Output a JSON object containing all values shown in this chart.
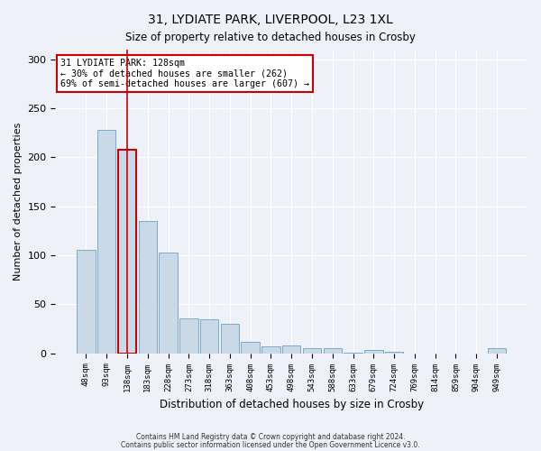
{
  "title1": "31, LYDIATE PARK, LIVERPOOL, L23 1XL",
  "title2": "Size of property relative to detached houses in Crosby",
  "xlabel": "Distribution of detached houses by size in Crosby",
  "ylabel": "Number of detached properties",
  "annotation_line1": "31 LYDIATE PARK: 128sqm",
  "annotation_line2": "← 30% of detached houses are smaller (262)",
  "annotation_line3": "69% of semi-detached houses are larger (607) →",
  "footer1": "Contains HM Land Registry data © Crown copyright and database right 2024.",
  "footer2": "Contains public sector information licensed under the Open Government Licence v3.0.",
  "bar_labels": [
    "48sqm",
    "93sqm",
    "138sqm",
    "183sqm",
    "228sqm",
    "273sqm",
    "318sqm",
    "363sqm",
    "408sqm",
    "453sqm",
    "498sqm",
    "543sqm",
    "588sqm",
    "633sqm",
    "679sqm",
    "724sqm",
    "769sqm",
    "814sqm",
    "859sqm",
    "904sqm",
    "949sqm"
  ],
  "bar_values": [
    106,
    228,
    208,
    135,
    103,
    36,
    35,
    30,
    12,
    7,
    8,
    5,
    5,
    1,
    3,
    2,
    0,
    0,
    0,
    0,
    5
  ],
  "bar_color": "#c9d9e8",
  "bar_edge_color": "#7aaac8",
  "highlight_bar_index": 2,
  "highlight_color": "#cc0000",
  "ylim": [
    0,
    310
  ],
  "yticks": [
    0,
    50,
    100,
    150,
    200,
    250,
    300
  ],
  "bg_color": "#eef2f8",
  "grid_color": "#ffffff",
  "annotation_box_color": "#ffffff",
  "annotation_box_edge": "#cc0000"
}
